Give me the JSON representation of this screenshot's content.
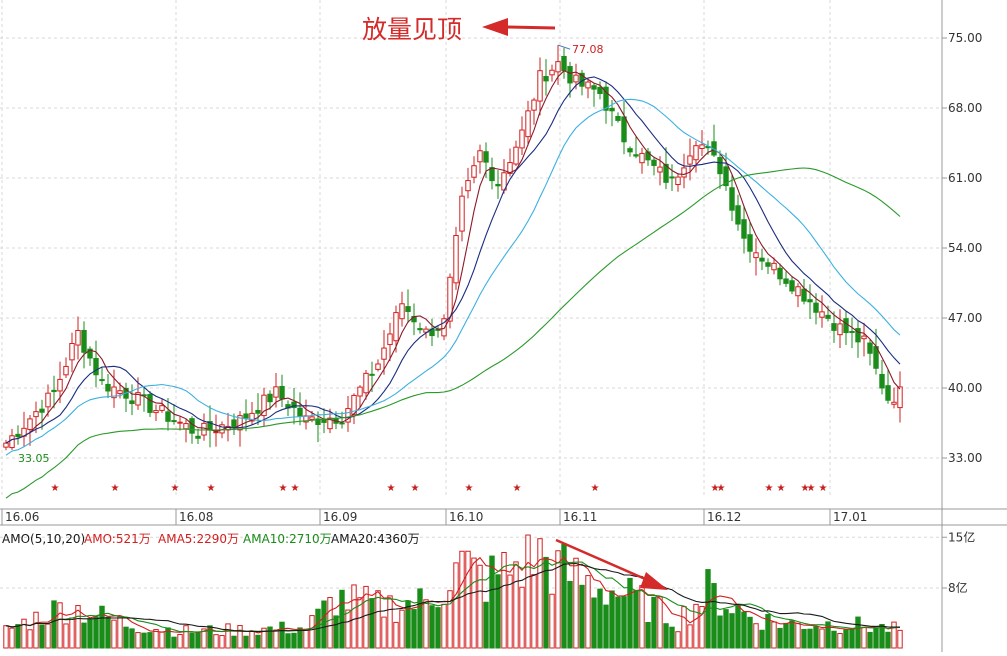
{
  "chart_data": [
    {
      "type": "candlestick",
      "annotation": "放量见顶",
      "high_label": "77.08",
      "low_label": "33.05",
      "y_ticks": [
        "75.00",
        "68.00",
        "61.00",
        "54.00",
        "47.00",
        "40.00",
        "33.00"
      ],
      "x_ticks": [
        "16.06",
        "16.08",
        "16.09",
        "16.10",
        "16.11",
        "16.12",
        "17.01"
      ],
      "ylim": [
        27,
        79
      ],
      "grid": true,
      "colors": {
        "up": "#d22020",
        "down": "#1a8c1a",
        "ma5": "#8b1a2a",
        "ma10": "#1a2c80",
        "ma20": "#3db0e0",
        "ma60": "#2a9a2a"
      },
      "anchors": [
        {
          "i": 0,
          "c": 34.5
        },
        {
          "i": 8,
          "c": 39.5
        },
        {
          "i": 12,
          "c": 45.5
        },
        {
          "i": 16,
          "c": 40.5
        },
        {
          "i": 20,
          "c": 39.5
        },
        {
          "i": 26,
          "c": 37.5
        },
        {
          "i": 32,
          "c": 35.5
        },
        {
          "i": 39,
          "c": 36.8
        },
        {
          "i": 45,
          "c": 39.5
        },
        {
          "i": 50,
          "c": 36.8
        },
        {
          "i": 56,
          "c": 37.2
        },
        {
          "i": 62,
          "c": 42.5
        },
        {
          "i": 66,
          "c": 48.5
        },
        {
          "i": 70,
          "c": 45.5
        },
        {
          "i": 73,
          "c": 46.5
        },
        {
          "i": 76,
          "c": 58.5
        },
        {
          "i": 79,
          "c": 63.5
        },
        {
          "i": 82,
          "c": 60.5
        },
        {
          "i": 86,
          "c": 65.5
        },
        {
          "i": 89,
          "c": 71.0
        },
        {
          "i": 92,
          "c": 72.5
        },
        {
          "i": 95,
          "c": 70.5
        },
        {
          "i": 99,
          "c": 69.5
        },
        {
          "i": 103,
          "c": 65.0
        },
        {
          "i": 107,
          "c": 62.5
        },
        {
          "i": 111,
          "c": 60.5
        },
        {
          "i": 115,
          "c": 65.0
        },
        {
          "i": 119,
          "c": 62.0
        },
        {
          "i": 123,
          "c": 55.0
        },
        {
          "i": 127,
          "c": 52.5
        },
        {
          "i": 131,
          "c": 50.5
        },
        {
          "i": 135,
          "c": 48.2
        },
        {
          "i": 139,
          "c": 46.0
        },
        {
          "i": 143,
          "c": 44.5
        },
        {
          "i": 147,
          "c": 39.0
        },
        {
          "i": 149,
          "c": 39.5
        }
      ],
      "star_indices": [
        8,
        18,
        28,
        34,
        46,
        48,
        64,
        68,
        77,
        85,
        98,
        118,
        119,
        127,
        129,
        133,
        134,
        136
      ]
    },
    {
      "type": "bar",
      "title": "AMO(5,10,20)",
      "legend": [
        {
          "label": "AMO:521万",
          "color": "#1a1a1a"
        },
        {
          "label": "AMA5:2290万",
          "color": "#d22020"
        },
        {
          "label": "AMA10:2710万",
          "color": "#1a8c1a"
        },
        {
          "label": "AMA20:4360万",
          "color": "#1a1a1a"
        }
      ],
      "y_ticks": [
        "15亿",
        "8亿"
      ],
      "ylim": [
        0,
        16.5
      ],
      "unit": "亿",
      "anchors": [
        {
          "i": 0,
          "v": 2.2
        },
        {
          "i": 10,
          "v": 5.5
        },
        {
          "i": 13,
          "v": 4.8
        },
        {
          "i": 20,
          "v": 3.0
        },
        {
          "i": 30,
          "v": 2.0
        },
        {
          "i": 40,
          "v": 2.2
        },
        {
          "i": 50,
          "v": 2.5
        },
        {
          "i": 55,
          "v": 6.5
        },
        {
          "i": 62,
          "v": 5.5
        },
        {
          "i": 70,
          "v": 6.0
        },
        {
          "i": 76,
          "v": 11.0
        },
        {
          "i": 80,
          "v": 9.0
        },
        {
          "i": 89,
          "v": 12.5
        },
        {
          "i": 92,
          "v": 10.5
        },
        {
          "i": 96,
          "v": 9.0
        },
        {
          "i": 100,
          "v": 8.0
        },
        {
          "i": 106,
          "v": 6.0
        },
        {
          "i": 112,
          "v": 3.5
        },
        {
          "i": 117,
          "v": 7.5
        },
        {
          "i": 124,
          "v": 4.0
        },
        {
          "i": 130,
          "v": 3.0
        },
        {
          "i": 140,
          "v": 3.0
        },
        {
          "i": 149,
          "v": 2.2
        }
      ]
    }
  ]
}
